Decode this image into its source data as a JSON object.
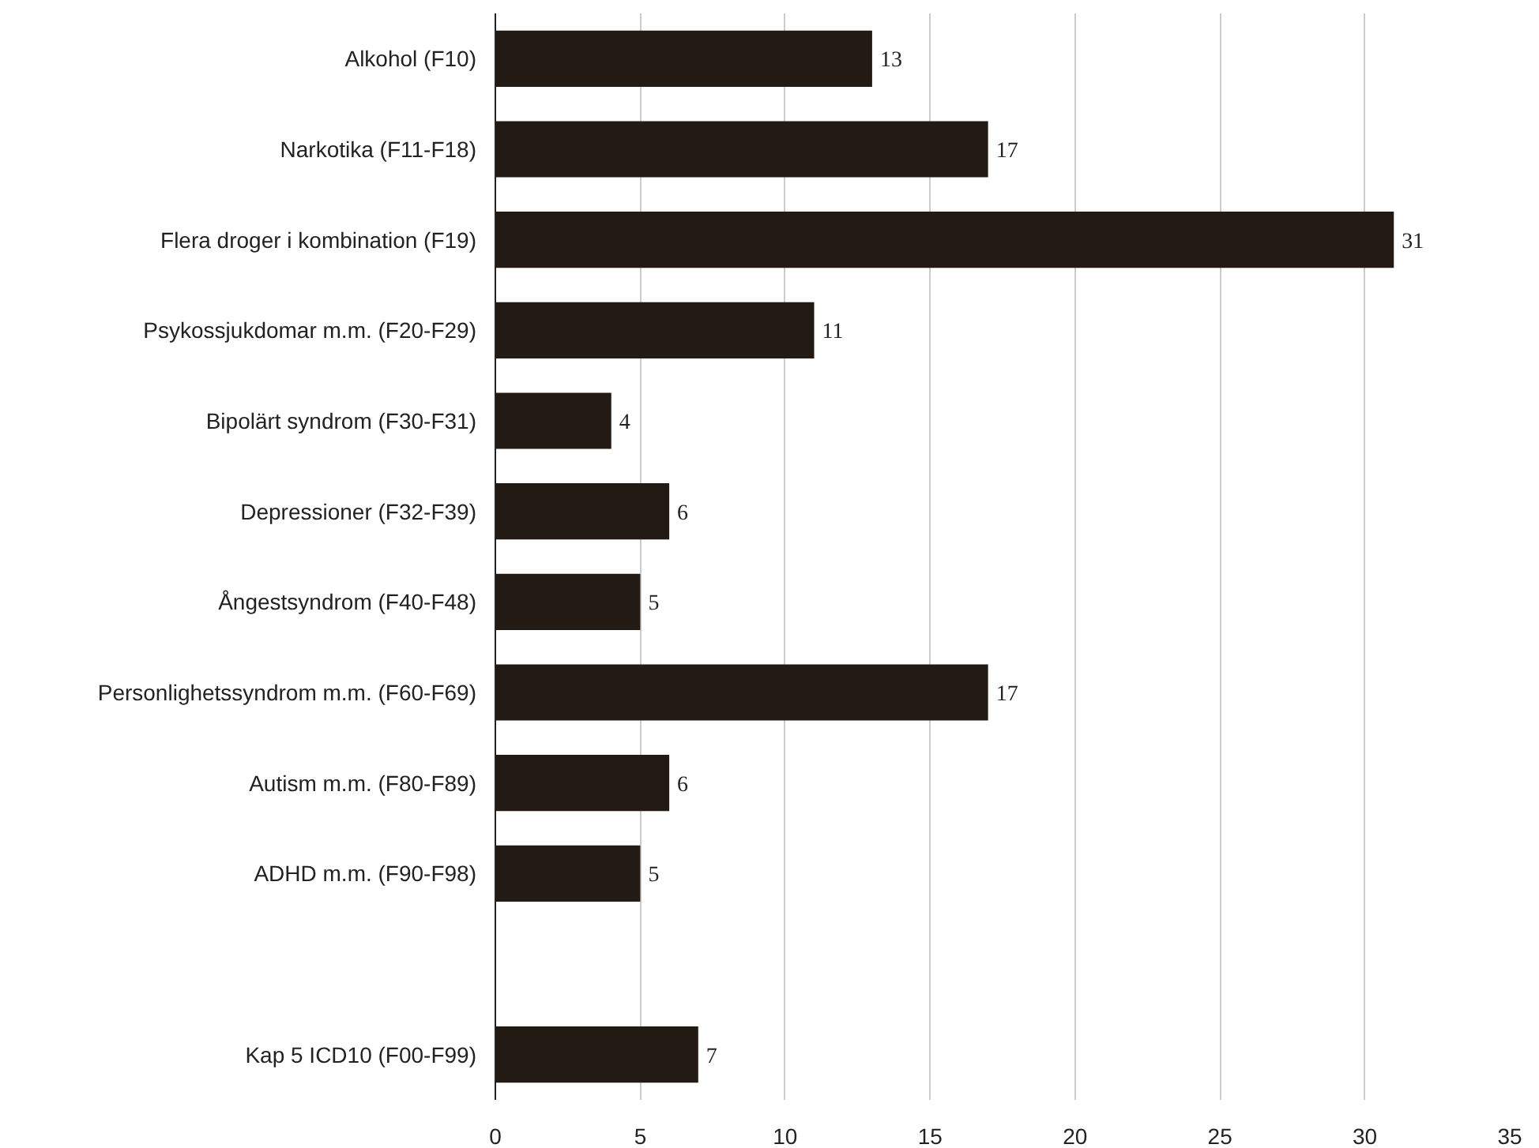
{
  "chart_data": {
    "type": "bar",
    "orientation": "horizontal",
    "categories": [
      "Alkohol (F10)",
      "Narkotika (F11-F18)",
      "Flera droger i kombination (F19)",
      "Psykossjukdomar m.m. (F20-F29)",
      "Bipolärt syndrom (F30-F31)",
      "Depressioner (F32-F39)",
      "Ångestsyndrom (F40-F48)",
      "Personlighetssyndrom m.m. (F60-F69)",
      "Autism m.m. (F80-F89)",
      "ADHD m.m. (F90-F98)",
      null,
      "Kap 5 ICD10 (F00-F99)"
    ],
    "values": [
      13,
      17,
      31,
      11,
      4,
      6,
      5,
      17,
      6,
      5,
      null,
      7
    ],
    "color": "#231a13",
    "xlim": [
      0,
      35
    ],
    "xticks": [
      0,
      5,
      10,
      15,
      20,
      25,
      30,
      35
    ],
    "grid": "x",
    "data_labels": true
  }
}
